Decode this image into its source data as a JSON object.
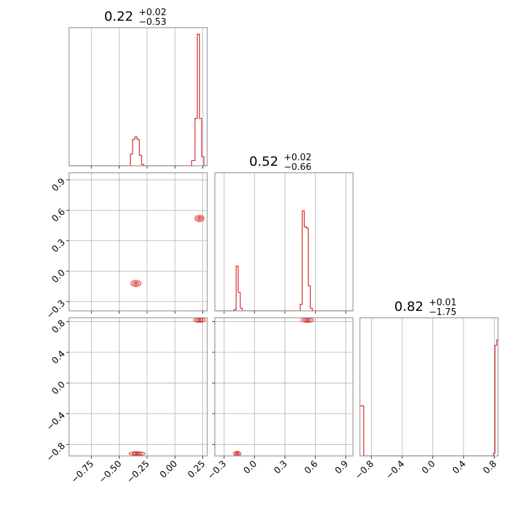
{
  "chart_data": {
    "type": "corner",
    "color": "#d62728",
    "grid": true,
    "parameters": [
      {
        "median": "0.22",
        "upper": "+0.02",
        "lower": "−0.53"
      },
      {
        "median": "0.52",
        "upper": "+0.02",
        "lower": "−0.66"
      },
      {
        "median": "0.82",
        "upper": "+0.01",
        "lower": "−1.75"
      }
    ],
    "axis_ranges": {
      "p0": [
        -0.95,
        0.29
      ],
      "p1": [
        -0.39,
        0.97
      ],
      "p2": [
        -0.95,
        0.85
      ]
    },
    "ticks": {
      "p0": [
        {
          "v": -0.75,
          "label": "−0.75"
        },
        {
          "v": -0.5,
          "label": "−0.50"
        },
        {
          "v": -0.25,
          "label": "−0.25"
        },
        {
          "v": 0.0,
          "label": "0.00"
        },
        {
          "v": 0.25,
          "label": "0.25"
        }
      ],
      "p1": [
        {
          "v": -0.3,
          "label": "−0.3"
        },
        {
          "v": 0.0,
          "label": "0.0"
        },
        {
          "v": 0.3,
          "label": "0.3"
        },
        {
          "v": 0.6,
          "label": "0.6"
        },
        {
          "v": 0.9,
          "label": "0.9"
        }
      ],
      "p2": [
        {
          "v": -0.8,
          "label": "−0.8"
        },
        {
          "v": -0.4,
          "label": "−0.4"
        },
        {
          "v": 0.0,
          "label": "0.0"
        },
        {
          "v": 0.4,
          "label": "0.4"
        },
        {
          "v": 0.8,
          "label": "0.8"
        }
      ]
    },
    "histograms": [
      {
        "param": "p0",
        "edges": [
          -0.95,
          -0.4,
          -0.38,
          -0.36,
          -0.34,
          -0.32,
          -0.3,
          -0.28,
          0.15,
          0.18,
          0.2,
          0.22,
          0.24,
          0.26,
          0.29
        ],
        "heights": [
          0,
          0.09,
          0.2,
          0.22,
          0.2,
          0.08,
          0.01,
          0,
          0.04,
          0.36,
          1.0,
          0.36,
          0.07,
          0
        ]
      },
      {
        "param": "p1",
        "edges": [
          -0.39,
          -0.2,
          -0.18,
          -0.16,
          -0.14,
          -0.12,
          0.45,
          0.47,
          0.49,
          0.51,
          0.53,
          0.55,
          0.57,
          0.97
        ],
        "heights": [
          0,
          0.01,
          0.34,
          0.14,
          0.02,
          0,
          0.05,
          0.76,
          0.64,
          0.63,
          0.19,
          0.02,
          0
        ]
      },
      {
        "param": "p2",
        "edges": [
          -0.95,
          -0.91,
          -0.9,
          0.79,
          0.81,
          0.83,
          0.85
        ],
        "heights": [
          0.38,
          0.38,
          0,
          0.02,
          0.84,
          0.88
        ]
      }
    ],
    "scatter_panels": [
      {
        "x": "p0",
        "y": "p1",
        "clusters": [
          {
            "x": 0.22,
            "y": 0.52,
            "rx": 0.04,
            "ry": 0.03
          },
          {
            "x": -0.35,
            "y": -0.12,
            "rx": 0.045,
            "ry": 0.03
          }
        ]
      },
      {
        "x": "p0",
        "y": "p2",
        "clusters": [
          {
            "x": 0.22,
            "y": 0.82,
            "rx": 0.05,
            "ry": 0.03
          },
          {
            "x": -0.34,
            "y": -0.92,
            "rx": 0.07,
            "ry": 0.025
          }
        ]
      },
      {
        "x": "p1",
        "y": "p2",
        "clusters": [
          {
            "x": 0.52,
            "y": 0.82,
            "rx": 0.06,
            "ry": 0.03
          },
          {
            "x": -0.17,
            "y": -0.92,
            "rx": 0.035,
            "ry": 0.03
          }
        ]
      }
    ]
  }
}
